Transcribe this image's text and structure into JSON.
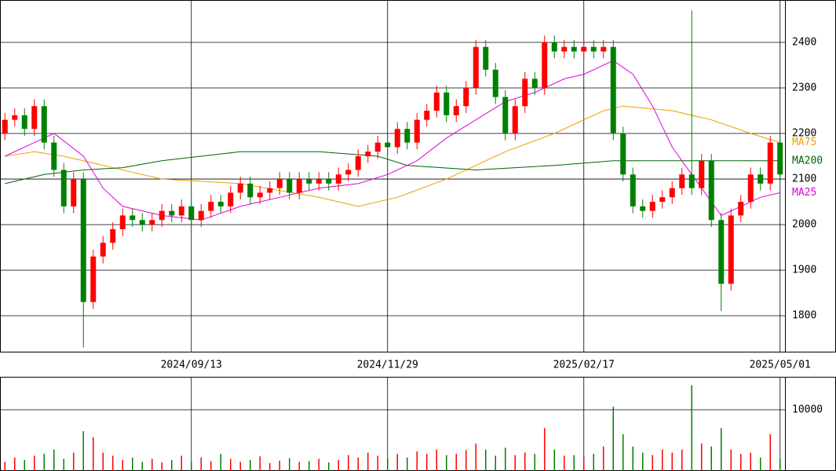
{
  "chart_data": [
    {
      "type": "candlestick",
      "categories": [
        null,
        null,
        null,
        null,
        null,
        null,
        null,
        null,
        null,
        null,
        null,
        null,
        null,
        null,
        null,
        null,
        null,
        null,
        null,
        "2024/09/13",
        null,
        null,
        null,
        null,
        null,
        null,
        null,
        null,
        null,
        null,
        null,
        null,
        null,
        null,
        null,
        null,
        null,
        null,
        null,
        "2024/11/29",
        null,
        null,
        null,
        null,
        null,
        null,
        null,
        null,
        null,
        null,
        null,
        null,
        null,
        null,
        null,
        null,
        null,
        null,
        null,
        "2025/02/17",
        null,
        null,
        null,
        null,
        null,
        null,
        null,
        null,
        null,
        null,
        null,
        null,
        null,
        null,
        null,
        null,
        null,
        null,
        null,
        "2025/05/01"
      ],
      "open": [
        2200,
        2230,
        2240,
        2210,
        2260,
        2180,
        2120,
        2040,
        2100,
        1830,
        1930,
        1960,
        1990,
        2020,
        2010,
        2000,
        2010,
        2030,
        2020,
        2040,
        2010,
        2030,
        2050,
        2040,
        2070,
        2090,
        2060,
        2070,
        2080,
        2100,
        2070,
        2100,
        2090,
        2100,
        2090,
        2110,
        2120,
        2150,
        2160,
        2180,
        2170,
        2210,
        2180,
        2230,
        2250,
        2290,
        2240,
        2260,
        2300,
        2390,
        2340,
        2280,
        2200,
        2260,
        2320,
        2300,
        2400,
        2380,
        2390,
        2380,
        2390,
        2380,
        2390,
        2200,
        2110,
        2040,
        2030,
        2050,
        2060,
        2080,
        2110,
        2080,
        2140,
        2010,
        1870,
        2020,
        2050,
        2110,
        2090,
        2180
      ],
      "high": [
        2245,
        2255,
        2255,
        2275,
        2275,
        2195,
        2135,
        2115,
        2115,
        1945,
        1975,
        2005,
        2035,
        2035,
        2025,
        2025,
        2045,
        2045,
        2055,
        2055,
        2045,
        2065,
        2065,
        2085,
        2105,
        2105,
        2085,
        2095,
        2115,
        2115,
        2115,
        2115,
        2115,
        2115,
        2125,
        2135,
        2165,
        2175,
        2195,
        2195,
        2225,
        2225,
        2245,
        2265,
        2305,
        2305,
        2275,
        2315,
        2405,
        2405,
        2355,
        2295,
        2275,
        2335,
        2335,
        2415,
        2415,
        2405,
        2405,
        2405,
        2405,
        2405,
        2405,
        2215,
        2125,
        2055,
        2065,
        2075,
        2095,
        2125,
        2470,
        2155,
        2155,
        2025,
        2035,
        2065,
        2125,
        2125,
        2195,
        2195
      ],
      "low": [
        2185,
        2215,
        2195,
        2195,
        2165,
        2105,
        2025,
        2025,
        1730,
        1815,
        1915,
        1945,
        1975,
        1995,
        1985,
        1985,
        1995,
        2005,
        2005,
        1995,
        1995,
        2015,
        2025,
        2025,
        2055,
        2045,
        2045,
        2055,
        2065,
        2055,
        2055,
        2075,
        2075,
        2075,
        2075,
        2095,
        2105,
        2135,
        2145,
        2155,
        2155,
        2165,
        2165,
        2215,
        2235,
        2225,
        2225,
        2245,
        2285,
        2325,
        2265,
        2185,
        2185,
        2245,
        2285,
        2285,
        2365,
        2365,
        2365,
        2365,
        2365,
        2365,
        2185,
        2095,
        2025,
        2015,
        2015,
        2035,
        2045,
        2065,
        2065,
        2065,
        1995,
        1810,
        1855,
        2005,
        2035,
        2075,
        2075,
        2095
      ],
      "close": [
        2230,
        2240,
        2210,
        2260,
        2180,
        2120,
        2040,
        2100,
        1830,
        1930,
        1960,
        1990,
        2020,
        2010,
        2000,
        2010,
        2030,
        2020,
        2040,
        2010,
        2030,
        2050,
        2040,
        2070,
        2090,
        2060,
        2070,
        2080,
        2100,
        2070,
        2100,
        2090,
        2100,
        2090,
        2110,
        2120,
        2150,
        2160,
        2180,
        2170,
        2210,
        2180,
        2230,
        2250,
        2290,
        2240,
        2260,
        2300,
        2390,
        2340,
        2280,
        2200,
        2260,
        2320,
        2300,
        2400,
        2380,
        2390,
        2380,
        2390,
        2380,
        2390,
        2200,
        2110,
        2040,
        2030,
        2050,
        2060,
        2080,
        2110,
        2080,
        2140,
        2010,
        1870,
        2020,
        2050,
        2110,
        2090,
        2180,
        2110
      ],
      "up_color": "#ff0000",
      "down_color": "#008000",
      "series": [
        {
          "name": "MA75",
          "color": "#f0a000",
          "x": [
            0,
            3,
            6,
            10,
            16,
            24,
            32,
            36,
            40,
            45,
            48,
            51,
            56,
            61,
            63,
            68,
            72,
            76,
            79
          ],
          "values": [
            2150,
            2160,
            2150,
            2130,
            2100,
            2090,
            2060,
            2040,
            2060,
            2100,
            2130,
            2160,
            2200,
            2250,
            2260,
            2250,
            2230,
            2200,
            2180
          ]
        },
        {
          "name": "MA200",
          "color": "#006400",
          "x": [
            0,
            4,
            8,
            12,
            16,
            24,
            32,
            38,
            41,
            48,
            56,
            62,
            68,
            79
          ],
          "values": [
            2090,
            2110,
            2120,
            2125,
            2140,
            2160,
            2160,
            2150,
            2130,
            2120,
            2130,
            2140,
            2140,
            2140
          ]
        },
        {
          "name": "MA25",
          "color": "#e000e0",
          "x": [
            0,
            3,
            5,
            8,
            10,
            12,
            16,
            20,
            24,
            28,
            32,
            36,
            39,
            42,
            45,
            48,
            51,
            54,
            57,
            59,
            62,
            64,
            66,
            68,
            70,
            72,
            73,
            75,
            77,
            79
          ],
          "values": [
            2150,
            2180,
            2200,
            2150,
            2080,
            2040,
            2020,
            2010,
            2040,
            2060,
            2080,
            2090,
            2110,
            2140,
            2190,
            2230,
            2270,
            2290,
            2320,
            2330,
            2360,
            2330,
            2260,
            2170,
            2110,
            2050,
            2020,
            2040,
            2060,
            2070
          ]
        }
      ],
      "ylim": [
        1721,
        2493
      ],
      "yticks": [
        1800,
        1900,
        2000,
        2100,
        2200,
        2300,
        2400
      ],
      "grid": true
    },
    {
      "type": "bar",
      "values": [
        1500,
        2200,
        1800,
        2500,
        2800,
        3500,
        2000,
        3000,
        6500,
        5500,
        3000,
        2500,
        1800,
        2200,
        1500,
        2000,
        1400,
        1800,
        2500,
        1500,
        2200,
        1600,
        2800,
        2000,
        1500,
        1800,
        2400,
        1300,
        1700,
        2100,
        1500,
        1600,
        2000,
        1400,
        1800,
        2600,
        2200,
        3000,
        2500,
        2000,
        2800,
        2200,
        3200,
        2800,
        3500,
        2600,
        2800,
        3400,
        4500,
        3500,
        2500,
        3800,
        2600,
        3000,
        2800,
        7000,
        3500,
        2500,
        2600,
        2400,
        2800,
        4000,
        10500,
        6000,
        4000,
        3000,
        2600,
        3500,
        3000,
        3500,
        14000,
        4500,
        4000,
        7000,
        3500,
        2800,
        3000,
        2200,
        6000,
        2000
      ],
      "ylim": [
        0,
        15385
      ],
      "yticks": [
        10000
      ],
      "grid": true
    }
  ]
}
